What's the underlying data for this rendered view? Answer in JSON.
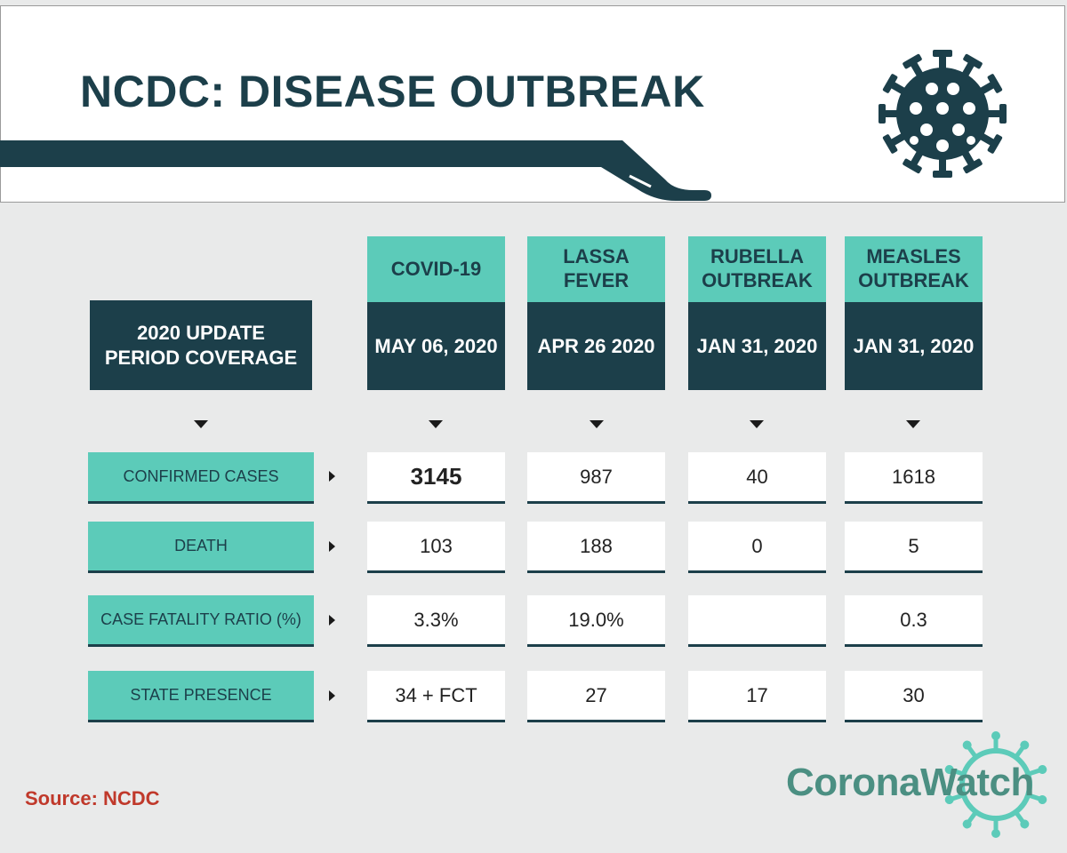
{
  "title": "NCDC: DISEASE OUTBREAK",
  "period_label": "2020 UPDATE\nPERIOD COVERAGE",
  "diseases": [
    {
      "name": "COVID-19",
      "date": "MAY 06, 2020"
    },
    {
      "name": "LASSA\nFEVER",
      "date": "APR 26 2020"
    },
    {
      "name": "RUBELLA\nOUTBREAK",
      "date": "JAN 31, 2020"
    },
    {
      "name": "MEASLES\nOUTBREAK",
      "date": "JAN 31, 2020"
    }
  ],
  "rows": [
    {
      "label": "CONFIRMED CASES",
      "values": [
        "3145",
        "987",
        "40",
        "1618"
      ]
    },
    {
      "label": "DEATH",
      "values": [
        "103",
        "188",
        "0",
        "5"
      ]
    },
    {
      "label": "CASE FATALITY RATIO (%)",
      "values": [
        "3.3%",
        "19.0%",
        "",
        "0.3"
      ]
    },
    {
      "label": "STATE PRESENCE",
      "values": [
        "34 + FCT",
        "27",
        "17",
        "30"
      ]
    }
  ],
  "source": "Source: NCDC",
  "brand": "CoronaWatch",
  "colors": {
    "dark": "#1c3f4a",
    "teal": "#5ccbb9",
    "source_red": "#c0392b",
    "brand_green": "#4b8f82"
  },
  "icons": [
    "virus-icon",
    "coronawatch-virus-icon",
    "chevron-down-icon",
    "chevron-right-icon"
  ]
}
